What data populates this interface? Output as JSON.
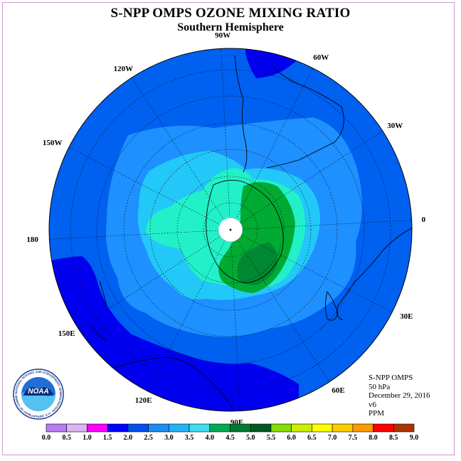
{
  "title": "S-NPP OMPS OZONE MIXING RATIO",
  "subtitle": "Southern Hemisphere",
  "longitude_labels": [
    "90W",
    "60W",
    "30W",
    "0",
    "30E",
    "60E",
    "90E",
    "120E",
    "150E",
    "180",
    "150W",
    "120W"
  ],
  "info": {
    "instrument": "S-NPP OMPS",
    "level": "50 hPa",
    "date": "December 29, 2016",
    "version": "v6",
    "units": "PPM"
  },
  "logo": {
    "text": "NOAA",
    "ring_text": "NATIONAL OCEANIC AND ATMOSPHERIC ADMINISTRATION · U.S. DEPARTMENT OF COMMERCE"
  },
  "colorbar": {
    "tick_labels": [
      "0.0",
      "0.5",
      "1.0",
      "1.5",
      "2.0",
      "2.5",
      "3.0",
      "3.5",
      "4.0",
      "4.5",
      "5.0",
      "5.5",
      "6.0",
      "6.5",
      "7.0",
      "7.5",
      "8.0",
      "8.5",
      "9.0"
    ],
    "colors": [
      "#b77bf2",
      "#dcb4f4",
      "#ff00ff",
      "#0000ff",
      "#0051f0",
      "#1e8cf0",
      "#22b4f5",
      "#40dcf0",
      "#00aa55",
      "#007a33",
      "#005a20",
      "#88dd00",
      "#ccee00",
      "#ffff00",
      "#ffcc00",
      "#ff9900",
      "#ff0000",
      "#aa3300"
    ]
  },
  "map_colors": {
    "level_2_0": "#0000ee",
    "level_2_5": "#0060f0",
    "level_3_0": "#1e90ff",
    "level_3_5": "#22c8f8",
    "level_4_0": "#22f0c8",
    "level_4_5": "#00aa33",
    "level_5_0": "#008833",
    "polar_cap": "#ffffff"
  }
}
